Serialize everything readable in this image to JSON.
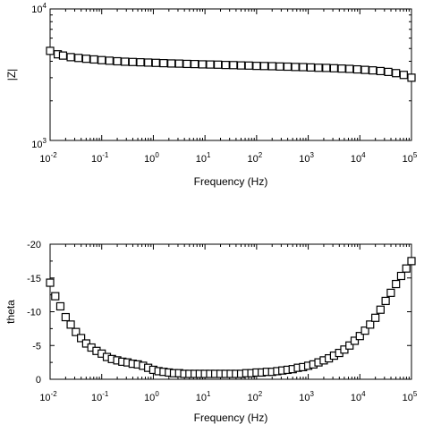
{
  "chart_data": [
    {
      "type": "scatter",
      "x_scale": "log",
      "y_scale": "log",
      "xlim": [
        0.01,
        100000
      ],
      "ylim": [
        1000,
        10000
      ],
      "xlabel": "Frequency (Hz)",
      "ylabel": "|Z|",
      "y_ticks": [
        {
          "base": "10",
          "exp": "3"
        },
        {
          "base": "10",
          "exp": "4"
        }
      ],
      "x_ticks": [
        {
          "base": "10",
          "exp": "-2"
        },
        {
          "base": "10",
          "exp": "-1"
        },
        {
          "base": "10",
          "exp": "0"
        },
        {
          "base": "10",
          "exp": "1"
        },
        {
          "base": "10",
          "exp": "2"
        },
        {
          "base": "10",
          "exp": "3"
        },
        {
          "base": "10",
          "exp": "4"
        },
        {
          "base": "10",
          "exp": "5"
        }
      ],
      "marker": "open-square",
      "series": [
        {
          "points": [
            [
              0.01,
              4800
            ],
            [
              0.0141,
              4520
            ],
            [
              0.0178,
              4420
            ],
            [
              0.0251,
              4300
            ],
            [
              0.0355,
              4240
            ],
            [
              0.0501,
              4180
            ],
            [
              0.0708,
              4130
            ],
            [
              0.1,
              4080
            ],
            [
              0.141,
              4040
            ],
            [
              0.2,
              4000
            ],
            [
              0.282,
              3970
            ],
            [
              0.398,
              3950
            ],
            [
              0.562,
              3930
            ],
            [
              0.794,
              3910
            ],
            [
              1.12,
              3890
            ],
            [
              1.58,
              3870
            ],
            [
              2.24,
              3850
            ],
            [
              3.16,
              3840
            ],
            [
              4.47,
              3820
            ],
            [
              6.31,
              3810
            ],
            [
              8.91,
              3790
            ],
            [
              12.6,
              3780
            ],
            [
              17.8,
              3770
            ],
            [
              25.1,
              3750
            ],
            [
              35.5,
              3740
            ],
            [
              50.1,
              3720
            ],
            [
              70.8,
              3710
            ],
            [
              100,
              3690
            ],
            [
              141,
              3680
            ],
            [
              200,
              3670
            ],
            [
              282,
              3650
            ],
            [
              398,
              3640
            ],
            [
              562,
              3620
            ],
            [
              794,
              3610
            ],
            [
              1120,
              3590
            ],
            [
              1580,
              3570
            ],
            [
              2240,
              3560
            ],
            [
              3160,
              3540
            ],
            [
              4470,
              3520
            ],
            [
              6310,
              3500
            ],
            [
              8910,
              3470
            ],
            [
              12600,
              3440
            ],
            [
              17800,
              3410
            ],
            [
              25100,
              3370
            ],
            [
              35500,
              3320
            ],
            [
              50100,
              3250
            ],
            [
              70800,
              3150
            ],
            [
              100000,
              3000
            ]
          ]
        }
      ]
    },
    {
      "type": "scatter",
      "x_scale": "log",
      "xlim": [
        0.01,
        100000
      ],
      "ylim": [
        0,
        -20
      ],
      "xlabel": "Frequency (Hz)",
      "ylabel": "theta",
      "y_ticks": [
        "-20",
        "-15",
        "-10",
        "-5",
        "0"
      ],
      "y_tick_values": [
        -20,
        -15,
        -10,
        -5,
        0
      ],
      "x_ticks": [
        {
          "base": "10",
          "exp": "-2"
        },
        {
          "base": "10",
          "exp": "-1"
        },
        {
          "base": "10",
          "exp": "0"
        },
        {
          "base": "10",
          "exp": "1"
        },
        {
          "base": "10",
          "exp": "2"
        },
        {
          "base": "10",
          "exp": "3"
        },
        {
          "base": "10",
          "exp": "4"
        },
        {
          "base": "10",
          "exp": "5"
        }
      ],
      "marker": "open-square",
      "series": [
        {
          "points": [
            [
              0.01,
              -14.3
            ],
            [
              0.0126,
              -12.3
            ],
            [
              0.0158,
              -10.8
            ],
            [
              0.02,
              -9.2
            ],
            [
              0.0251,
              -8.1
            ],
            [
              0.0316,
              -7.0
            ],
            [
              0.0398,
              -6.1
            ],
            [
              0.0501,
              -5.3
            ],
            [
              0.0631,
              -4.7
            ],
            [
              0.0794,
              -4.2
            ],
            [
              0.1,
              -3.8
            ],
            [
              0.126,
              -3.3
            ],
            [
              0.158,
              -3.0
            ],
            [
              0.2,
              -2.8
            ],
            [
              0.251,
              -2.6
            ],
            [
              0.316,
              -2.5
            ],
            [
              0.398,
              -2.3
            ],
            [
              0.501,
              -2.2
            ],
            [
              0.631,
              -2.0
            ],
            [
              0.794,
              -1.7
            ],
            [
              1.0,
              -1.4
            ],
            [
              1.26,
              -1.2
            ],
            [
              1.58,
              -1.1
            ],
            [
              2.0,
              -1.0
            ],
            [
              2.51,
              -0.9
            ],
            [
              3.16,
              -0.9
            ],
            [
              3.98,
              -0.8
            ],
            [
              5.01,
              -0.8
            ],
            [
              6.31,
              -0.8
            ],
            [
              7.94,
              -0.8
            ],
            [
              10,
              -0.8
            ],
            [
              12.6,
              -0.8
            ],
            [
              15.8,
              -0.8
            ],
            [
              20,
              -0.8
            ],
            [
              25.1,
              -0.8
            ],
            [
              31.6,
              -0.8
            ],
            [
              39.8,
              -0.8
            ],
            [
              50.1,
              -0.8
            ],
            [
              63.1,
              -0.9
            ],
            [
              79.4,
              -0.9
            ],
            [
              100,
              -1.0
            ],
            [
              126,
              -1.0
            ],
            [
              158,
              -1.1
            ],
            [
              200,
              -1.1
            ],
            [
              251,
              -1.2
            ],
            [
              316,
              -1.3
            ],
            [
              398,
              -1.4
            ],
            [
              501,
              -1.5
            ],
            [
              631,
              -1.7
            ],
            [
              794,
              -1.8
            ],
            [
              1000,
              -2.0
            ],
            [
              1260,
              -2.2
            ],
            [
              1580,
              -2.5
            ],
            [
              2000,
              -2.8
            ],
            [
              2510,
              -3.1
            ],
            [
              3160,
              -3.5
            ],
            [
              3980,
              -3.9
            ],
            [
              5010,
              -4.4
            ],
            [
              6310,
              -5.0
            ],
            [
              7940,
              -5.7
            ],
            [
              10000,
              -6.4
            ],
            [
              12600,
              -7.2
            ],
            [
              15800,
              -8.1
            ],
            [
              20000,
              -9.1
            ],
            [
              25100,
              -10.3
            ],
            [
              31600,
              -11.6
            ],
            [
              39800,
              -12.8
            ],
            [
              50100,
              -14.1
            ],
            [
              63100,
              -15.3
            ],
            [
              79400,
              -16.4
            ],
            [
              100000,
              -17.5
            ]
          ]
        }
      ]
    }
  ]
}
